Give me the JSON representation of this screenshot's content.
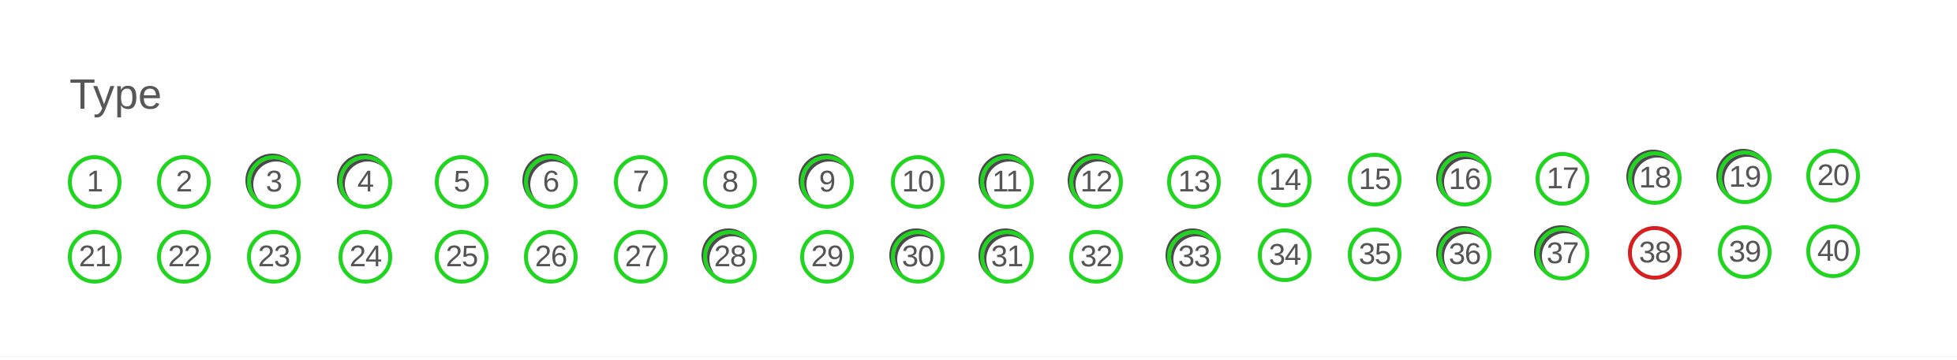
{
  "heading": "Type",
  "items": [
    {
      "label": "1",
      "state": "ok"
    },
    {
      "label": "2",
      "state": "ok"
    },
    {
      "label": "3",
      "state": "ok-dark"
    },
    {
      "label": "4",
      "state": "ok-dark"
    },
    {
      "label": "5",
      "state": "ok"
    },
    {
      "label": "6",
      "state": "ok-dark"
    },
    {
      "label": "7",
      "state": "ok"
    },
    {
      "label": "8",
      "state": "ok"
    },
    {
      "label": "9",
      "state": "ok-dark"
    },
    {
      "label": "10",
      "state": "ok"
    },
    {
      "label": "11",
      "state": "ok-dark"
    },
    {
      "label": "12",
      "state": "ok-dark"
    },
    {
      "label": "13",
      "state": "ok"
    },
    {
      "label": "14",
      "state": "ok"
    },
    {
      "label": "15",
      "state": "ok"
    },
    {
      "label": "16",
      "state": "ok-dark"
    },
    {
      "label": "17",
      "state": "ok"
    },
    {
      "label": "18",
      "state": "ok-dark"
    },
    {
      "label": "19",
      "state": "ok-dark"
    },
    {
      "label": "20",
      "state": "ok"
    },
    {
      "label": "21",
      "state": "ok"
    },
    {
      "label": "22",
      "state": "ok"
    },
    {
      "label": "23",
      "state": "ok"
    },
    {
      "label": "24",
      "state": "ok"
    },
    {
      "label": "25",
      "state": "ok"
    },
    {
      "label": "26",
      "state": "ok"
    },
    {
      "label": "27",
      "state": "ok"
    },
    {
      "label": "28",
      "state": "ok-dark"
    },
    {
      "label": "29",
      "state": "ok"
    },
    {
      "label": "30",
      "state": "ok-dark"
    },
    {
      "label": "31",
      "state": "ok-dark"
    },
    {
      "label": "32",
      "state": "ok"
    },
    {
      "label": "33",
      "state": "ok-dark"
    },
    {
      "label": "34",
      "state": "ok"
    },
    {
      "label": "35",
      "state": "ok"
    },
    {
      "label": "36",
      "state": "ok-dark"
    },
    {
      "label": "37",
      "state": "ok-dark"
    },
    {
      "label": "38",
      "state": "selected"
    },
    {
      "label": "39",
      "state": "ok"
    },
    {
      "label": "40",
      "state": "ok"
    }
  ],
  "colors": {
    "ring_green": "#20d420",
    "ring_red": "#d42020",
    "text_gray": "#555555"
  }
}
